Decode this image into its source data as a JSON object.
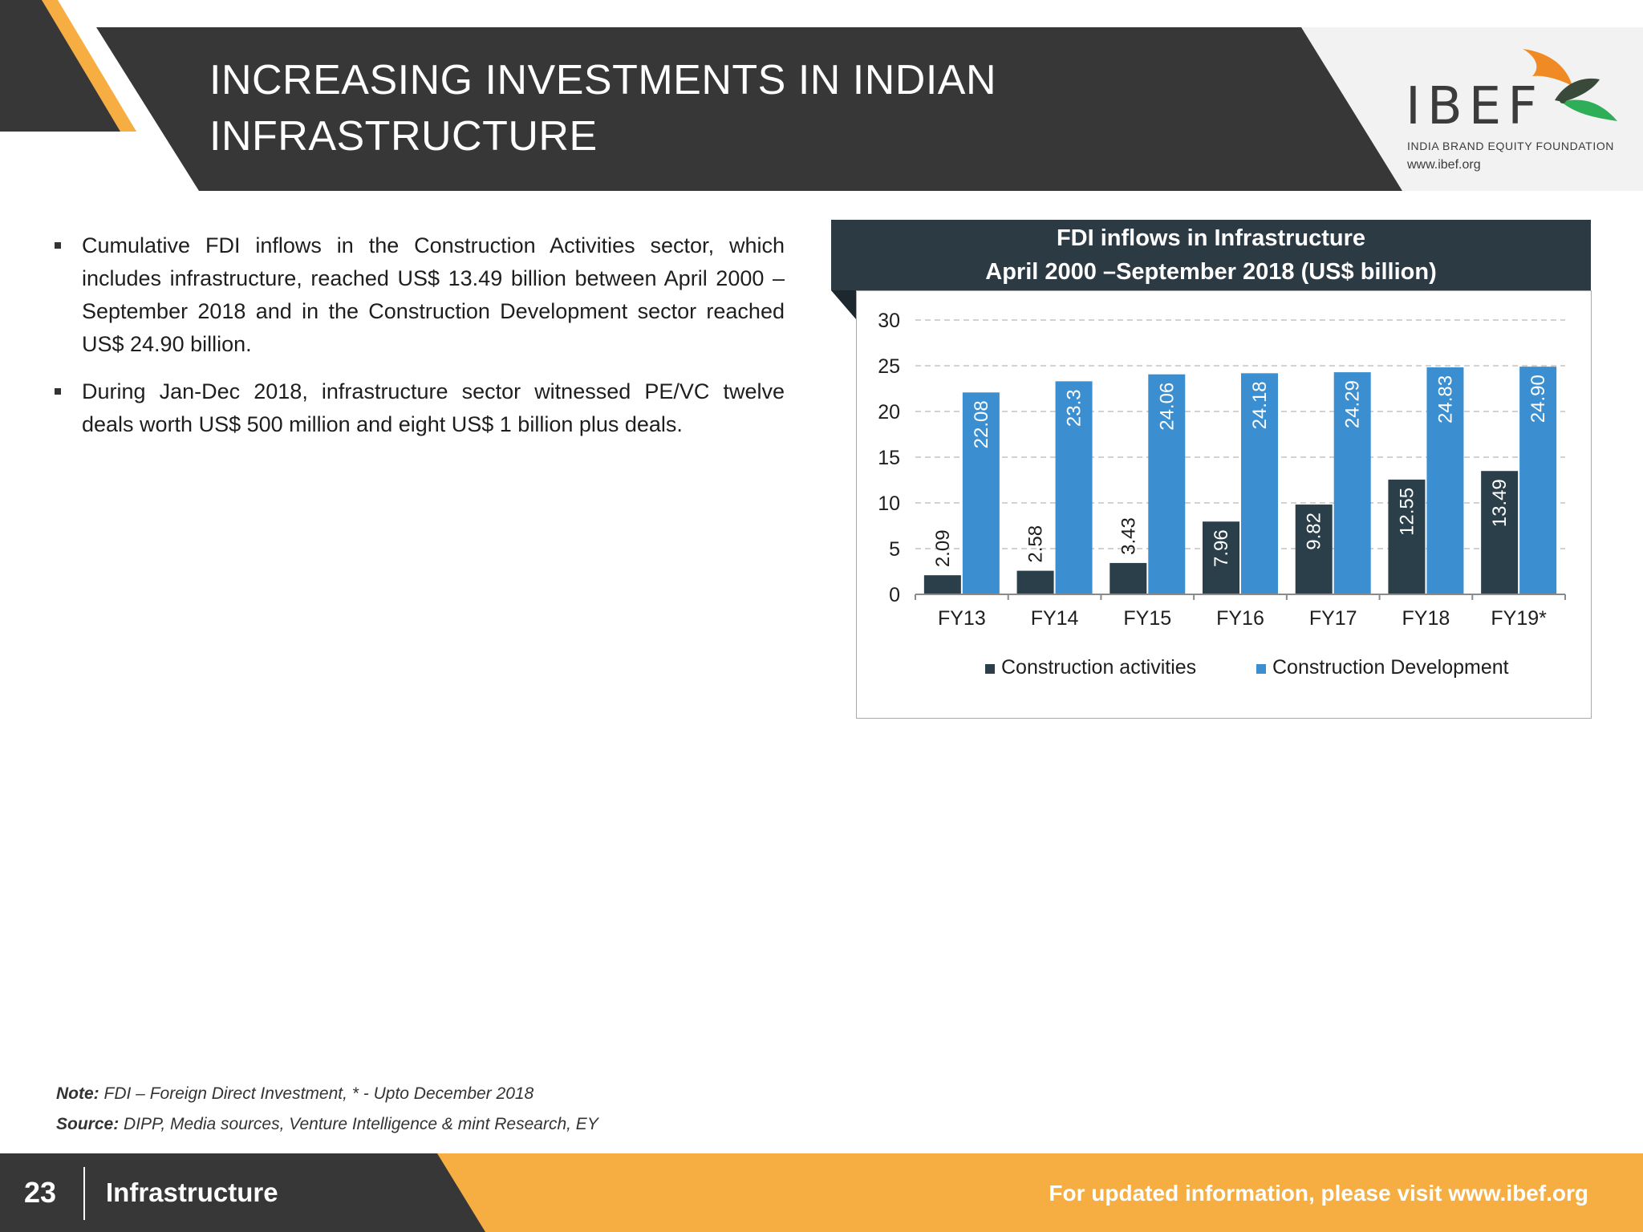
{
  "header": {
    "title_line1": "INCREASING INVESTMENTS IN INDIAN",
    "title_line2": "INFRASTRUCTURE",
    "logo": {
      "name": "IBEF",
      "tagline": "INDIA BRAND EQUITY FOUNDATION",
      "url": "www.ibef.org",
      "icon": "bird-logo-icon"
    }
  },
  "bullets": [
    "Cumulative FDI inflows in the Construction Activities sector, which includes infrastructure, reached US$ 13.49 billion between April 2000 – September 2018 and in the Construction Development sector reached US$ 24.90 billion.",
    "During Jan-Dec 2018, infrastructure sector witnessed PE/VC twelve deals worth US$ 500 million and eight US$ 1 billion plus deals."
  ],
  "chart_header": {
    "line1": "FDI inflows in Infrastructure",
    "line2": "April 2000 –September 2018  (US$ billion)"
  },
  "chart_data": {
    "type": "bar",
    "categories": [
      "FY13",
      "FY14",
      "FY15",
      "FY16",
      "FY17",
      "FY18",
      "FY19*"
    ],
    "series": [
      {
        "name": "Construction activities",
        "values": [
          2.09,
          2.58,
          3.43,
          7.96,
          9.82,
          12.55,
          13.49
        ],
        "labels": [
          "2.09",
          "2.58",
          "3.43",
          "7.96",
          "9.82",
          "12.55",
          "13.49"
        ],
        "color": "#2a3f4a"
      },
      {
        "name": "Construction Development",
        "values": [
          22.08,
          23.3,
          24.06,
          24.18,
          24.29,
          24.83,
          24.9
        ],
        "labels": [
          "22.08",
          "23.3",
          "24.06",
          "24.18",
          "24.29",
          "24.83",
          "24.90"
        ],
        "color": "#3b8fd0"
      }
    ],
    "ylim": [
      0,
      30
    ],
    "yticks": [
      0,
      5,
      10,
      15,
      20,
      25,
      30
    ],
    "grid": true,
    "legend_position": "bottom"
  },
  "notes": {
    "note_label": "Note:",
    "note_text": "FDI – Foreign Direct Investment,  * - Upto December 2018",
    "source_label": "Source:",
    "source_text": "DIPP, Media sources, Venture Intelligence & mint Research, EY"
  },
  "footer": {
    "page_number": "23",
    "section": "Infrastructure",
    "visit_text": "For updated information, please visit www.ibef.org"
  },
  "colors": {
    "dark": "#373737",
    "accent_orange": "#f6ae42",
    "chart_header_bg": "#2c3a44"
  }
}
